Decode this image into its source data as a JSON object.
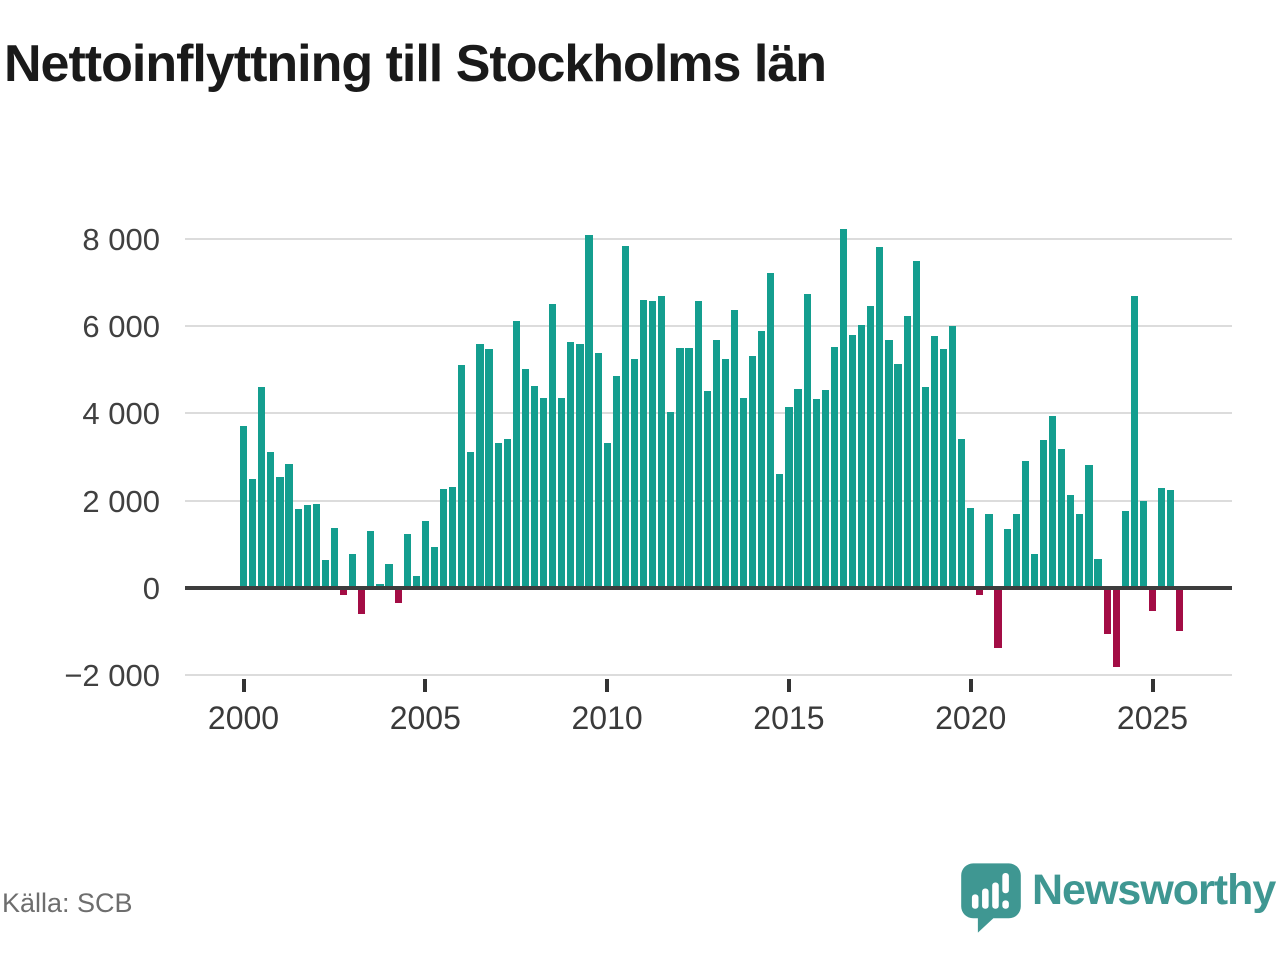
{
  "title": "Nettoinflyttning till Stockholms län",
  "source": "Källa: SCB",
  "branding": {
    "logo_text": "Newsworthy",
    "logo_icon": "bar-chart-speech-bubble-icon",
    "logo_color": "#3f9792"
  },
  "chart_data": {
    "type": "bar",
    "title": "Nettoinflyttning till Stockholms län",
    "xlabel": "",
    "ylabel": "",
    "frequency": "quarterly",
    "start_year": 2000,
    "x_ticks": [
      2000,
      2005,
      2010,
      2015,
      2020,
      2025
    ],
    "x_tick_labels": [
      "2000",
      "2005",
      "2010",
      "2015",
      "2020",
      "2025"
    ],
    "y_ticks": [
      8000,
      6000,
      4000,
      2000,
      0,
      -2000
    ],
    "y_tick_labels": [
      "8 000",
      "6 000",
      "4 000",
      "2 000",
      "0",
      "−2 000"
    ],
    "ylim": [
      -2450,
      8430
    ],
    "grid": true,
    "positive_color": "#149e8f",
    "negative_color": "#a30d45",
    "series": [
      {
        "name": "Nettoinflyttning",
        "values": [
          3670,
          2450,
          4570,
          3080,
          2490,
          2800,
          1760,
          1860,
          1880,
          590,
          1330,
          -120,
          740,
          -560,
          1250,
          30,
          500,
          -300,
          1190,
          240,
          1480,
          890,
          2220,
          2270,
          5070,
          3060,
          5550,
          5420,
          3280,
          3370,
          6080,
          4960,
          4580,
          4310,
          6450,
          4310,
          5585,
          5555,
          8050,
          5340,
          3280,
          4810,
          7800,
          5200,
          6550,
          6520,
          6650,
          3990,
          5460,
          5460,
          6540,
          4460,
          5630,
          5190,
          6320,
          4310,
          5280,
          5840,
          7160,
          2570,
          4100,
          4520,
          6700,
          4290,
          4480,
          5480,
          8180,
          5760,
          5990,
          6425,
          7770,
          5645,
          5090,
          6180,
          7440,
          4560,
          5720,
          5430,
          5965,
          3370,
          1790,
          -110,
          1640,
          -1340,
          1310,
          1650,
          2870,
          740,
          3350,
          3890,
          3150,
          2090,
          1650,
          2770,
          620,
          -1010,
          -1760,
          1710,
          6640,
          1940,
          -470,
          2250,
          2190,
          -950
        ]
      }
    ]
  }
}
